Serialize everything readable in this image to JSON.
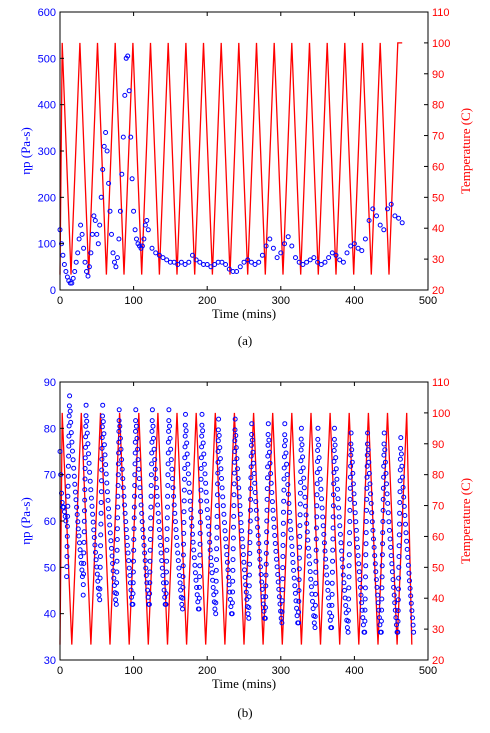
{
  "chart_data": [
    {
      "type": "scatter",
      "caption": "(a)",
      "xlabel": "Time (mins)",
      "ylabel_left": "ηp (Pa-s)",
      "ylabel_right": "Temperature (C)",
      "xlim": [
        0,
        500
      ],
      "ylim_left": [
        0,
        600
      ],
      "ylim_right": [
        20,
        110
      ],
      "xticks": [
        "0",
        "100",
        "200",
        "300",
        "400",
        "500"
      ],
      "yticks_left": [
        "0",
        "100",
        "200",
        "300",
        "400",
        "500",
        "600"
      ],
      "yticks_right": [
        "20",
        "30",
        "40",
        "50",
        "60",
        "70",
        "80",
        "90",
        "100",
        "110"
      ],
      "grid": false,
      "colors": {
        "viscosity": "#0000ff",
        "temperature": "#ff0000"
      },
      "temperature": {
        "style": "line",
        "x": [
          0,
          3,
          15,
          27,
          39,
          51,
          63,
          75,
          87,
          99,
          111,
          123,
          135,
          147,
          159,
          171,
          183,
          195,
          207,
          219,
          231,
          243,
          255,
          267,
          279,
          291,
          303,
          315,
          327,
          339,
          351,
          363,
          375,
          387,
          399,
          411,
          423,
          435,
          447,
          459,
          465
        ],
        "y": [
          25,
          100,
          25,
          100,
          25,
          100,
          25,
          100,
          25,
          100,
          25,
          100,
          25,
          100,
          25,
          100,
          25,
          100,
          25,
          100,
          25,
          100,
          25,
          100,
          25,
          100,
          25,
          100,
          25,
          100,
          25,
          100,
          25,
          100,
          25,
          100,
          25,
          100,
          25,
          100,
          100
        ]
      },
      "viscosity": {
        "style": "markers",
        "x": [
          0,
          2,
          4,
          6,
          8,
          10,
          12,
          14,
          16,
          18,
          20,
          22,
          24,
          26,
          28,
          30,
          32,
          34,
          36,
          38,
          40,
          42,
          44,
          46,
          48,
          50,
          52,
          54,
          56,
          58,
          60,
          62,
          64,
          66,
          68,
          70,
          72,
          74,
          76,
          78,
          80,
          82,
          84,
          86,
          88,
          90,
          92,
          94,
          96,
          98,
          100,
          102,
          104,
          106,
          108,
          110,
          112,
          114,
          116,
          118,
          120,
          125,
          130,
          135,
          140,
          145,
          150,
          155,
          160,
          165,
          170,
          175,
          180,
          185,
          190,
          195,
          200,
          205,
          210,
          215,
          220,
          225,
          230,
          235,
          240,
          245,
          250,
          255,
          260,
          265,
          270,
          275,
          280,
          285,
          290,
          295,
          300,
          305,
          310,
          315,
          320,
          325,
          330,
          335,
          340,
          345,
          350,
          355,
          360,
          365,
          370,
          375,
          380,
          385,
          390,
          395,
          400,
          405,
          410,
          415,
          420,
          425,
          430,
          435,
          440,
          445,
          450,
          455,
          460,
          465
        ],
        "y": [
          130,
          100,
          75,
          55,
          40,
          28,
          20,
          15,
          15,
          25,
          40,
          60,
          80,
          110,
          140,
          120,
          90,
          60,
          40,
          30,
          50,
          80,
          120,
          160,
          150,
          120,
          100,
          140,
          200,
          260,
          310,
          340,
          300,
          230,
          170,
          120,
          80,
          60,
          50,
          70,
          110,
          170,
          250,
          330,
          420,
          500,
          505,
          430,
          330,
          240,
          170,
          130,
          110,
          100,
          95,
          90,
          95,
          110,
          140,
          150,
          130,
          90,
          80,
          75,
          70,
          65,
          60,
          60,
          55,
          60,
          55,
          60,
          75,
          65,
          60,
          55,
          55,
          50,
          55,
          60,
          60,
          55,
          45,
          40,
          40,
          50,
          60,
          65,
          60,
          55,
          60,
          75,
          95,
          110,
          90,
          70,
          80,
          100,
          115,
          95,
          70,
          60,
          55,
          60,
          65,
          70,
          60,
          55,
          60,
          70,
          80,
          75,
          65,
          60,
          80,
          95,
          100,
          90,
          85,
          110,
          150,
          175,
          160,
          140,
          130,
          175,
          185,
          160,
          155,
          145
        ]
      }
    },
    {
      "type": "scatter",
      "caption": "(b)",
      "xlabel": "Time (mins)",
      "ylabel_left": "ηp (Pa-s)",
      "ylabel_right": "Temperature (C)",
      "xlim": [
        0,
        500
      ],
      "ylim_left": [
        30,
        90
      ],
      "ylim_right": [
        20,
        110
      ],
      "xticks": [
        "0",
        "100",
        "200",
        "300",
        "400",
        "500"
      ],
      "yticks_left": [
        "30",
        "40",
        "50",
        "60",
        "70",
        "80",
        "90"
      ],
      "yticks_right": [
        "20",
        "30",
        "40",
        "50",
        "60",
        "70",
        "80",
        "90",
        "100",
        "110"
      ],
      "grid": false,
      "colors": {
        "viscosity": "#0000ff",
        "temperature": "#ff0000"
      },
      "temperature": {
        "style": "line",
        "x": [
          0,
          3,
          16,
          29,
          42,
          55,
          68,
          81,
          94,
          107,
          120,
          133,
          146,
          159,
          172,
          185,
          198,
          211,
          224,
          237,
          250,
          263,
          276,
          289,
          302,
          315,
          328,
          341,
          354,
          367,
          380,
          393,
          406,
          419,
          432,
          445,
          458,
          471,
          478
        ],
        "y": [
          25,
          100,
          25,
          100,
          25,
          100,
          25,
          100,
          25,
          100,
          25,
          100,
          25,
          100,
          25,
          100,
          25,
          100,
          25,
          100,
          25,
          100,
          25,
          100,
          25,
          100,
          25,
          100,
          25,
          100,
          25,
          100,
          25,
          100,
          25,
          100,
          25,
          100,
          25
        ]
      },
      "viscosity": {
        "style": "markers",
        "mode": "cycles",
        "cycle_period": 22.5,
        "start": 9,
        "high": [
          87,
          85,
          85,
          84,
          84,
          84,
          84,
          83,
          83,
          82,
          82,
          81,
          81,
          81,
          80,
          80,
          80,
          79,
          79,
          79,
          78
        ],
        "low": [
          48,
          44,
          43,
          42,
          42,
          42,
          42,
          41,
          41,
          40,
          40,
          39,
          39,
          38,
          38,
          37,
          37,
          36,
          36,
          36,
          36
        ]
      }
    }
  ]
}
